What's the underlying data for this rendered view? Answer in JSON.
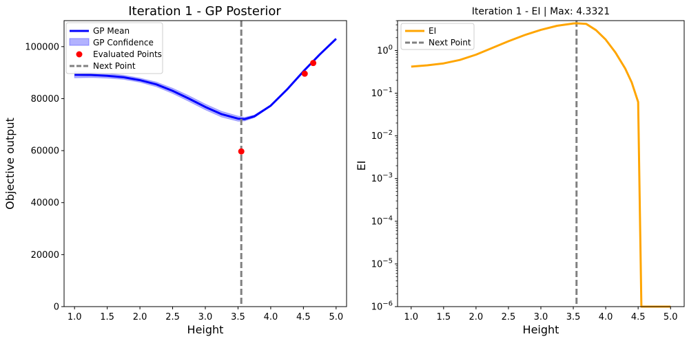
{
  "chart_data": [
    {
      "type": "line",
      "title": "Iteration 1 - GP Posterior",
      "xlabel": "Height",
      "ylabel": "Objective output",
      "xlim": [
        0.84,
        5.16
      ],
      "ylim": [
        0,
        110000
      ],
      "xticks": [
        1.0,
        1.5,
        2.0,
        2.5,
        3.0,
        3.5,
        4.0,
        4.5,
        5.0
      ],
      "xtick_labels": [
        "1.0",
        "1.5",
        "2.0",
        "2.5",
        "3.0",
        "3.5",
        "4.0",
        "4.5",
        "5.0"
      ],
      "yticks": [
        0,
        20000,
        40000,
        60000,
        80000,
        100000
      ],
      "ytick_labels": [
        "0",
        "20000",
        "40000",
        "60000",
        "80000",
        "100000"
      ],
      "legend_position": "top-left",
      "series": [
        {
          "name": "GP Mean",
          "kind": "line",
          "color": "#0000ff",
          "x": [
            1.0,
            1.25,
            1.5,
            1.75,
            2.0,
            2.25,
            2.5,
            2.75,
            3.0,
            3.25,
            3.5,
            3.6,
            3.75,
            4.0,
            4.25,
            4.5,
            4.75,
            5.0
          ],
          "y": [
            89200,
            89100,
            88800,
            88200,
            87100,
            85500,
            83000,
            80000,
            76800,
            74000,
            72300,
            72100,
            73200,
            77300,
            83500,
            90500,
            97000,
            103000
          ]
        },
        {
          "name": "GP Confidence",
          "kind": "band",
          "color": "#0000ff",
          "x": [
            1.0,
            1.25,
            1.5,
            1.75,
            2.0,
            2.25,
            2.5,
            2.75,
            3.0,
            3.25,
            3.5,
            3.6,
            3.75,
            4.0,
            4.25,
            4.5,
            4.75,
            5.0
          ],
          "lower": [
            88000,
            88100,
            87900,
            87400,
            86300,
            84600,
            82000,
            78900,
            75700,
            72900,
            71300,
            71400,
            72700,
            77000,
            83300,
            90400,
            96900,
            102900
          ],
          "upper": [
            90400,
            90100,
            89700,
            89000,
            87900,
            86400,
            84000,
            81100,
            77900,
            75100,
            73300,
            72800,
            73700,
            77600,
            83700,
            90600,
            97100,
            103100
          ]
        },
        {
          "name": "Evaluated Points",
          "kind": "scatter",
          "color": "#ff0000",
          "x": [
            3.55,
            4.52,
            4.65
          ],
          "y": [
            59700,
            89600,
            93700
          ]
        },
        {
          "name": "Next Point",
          "kind": "vline",
          "color": "#808080",
          "x": 3.55
        }
      ]
    },
    {
      "type": "line",
      "title": "Iteration 1 - EI | Max: 4.3321",
      "xlabel": "Height",
      "ylabel": "EI",
      "xlim": [
        0.79,
        5.21
      ],
      "ylim_log10": [
        -6,
        0.7
      ],
      "scale": "log",
      "xticks": [
        1.0,
        1.5,
        2.0,
        2.5,
        3.0,
        3.5,
        4.0,
        4.5,
        5.0
      ],
      "xtick_labels": [
        "1.0",
        "1.5",
        "2.0",
        "2.5",
        "3.0",
        "3.5",
        "4.0",
        "4.5",
        "5.0"
      ],
      "yticks": [
        {
          "exp": 0,
          "base": "10",
          "sup": "0"
        },
        {
          "exp": -1,
          "base": "10",
          "sup": "−1"
        },
        {
          "exp": -2,
          "base": "10",
          "sup": "−2"
        },
        {
          "exp": -3,
          "base": "10",
          "sup": "−3"
        },
        {
          "exp": -4,
          "base": "10",
          "sup": "−4"
        },
        {
          "exp": -5,
          "base": "10",
          "sup": "−5"
        },
        {
          "exp": -6,
          "base": "10",
          "sup": "−6"
        }
      ],
      "legend_position": "top-left",
      "series": [
        {
          "name": "EI",
          "kind": "line",
          "color": "#ffa500",
          "x": [
            1.0,
            1.25,
            1.5,
            1.75,
            2.0,
            2.25,
            2.5,
            2.75,
            3.0,
            3.25,
            3.5,
            3.55,
            3.7,
            3.85,
            4.0,
            4.15,
            4.3,
            4.4,
            4.5,
            4.55,
            4.6,
            4.8,
            5.0
          ],
          "y": [
            0.42,
            0.45,
            0.5,
            0.6,
            0.8,
            1.15,
            1.65,
            2.3,
            3.05,
            3.8,
            4.3,
            4.33,
            4.2,
            3.0,
            1.8,
            0.9,
            0.38,
            0.18,
            0.062,
            1e-06,
            1e-06,
            1e-06,
            1e-06
          ]
        },
        {
          "name": "Next Point",
          "kind": "vline",
          "color": "#808080",
          "x": 3.55
        }
      ]
    }
  ]
}
